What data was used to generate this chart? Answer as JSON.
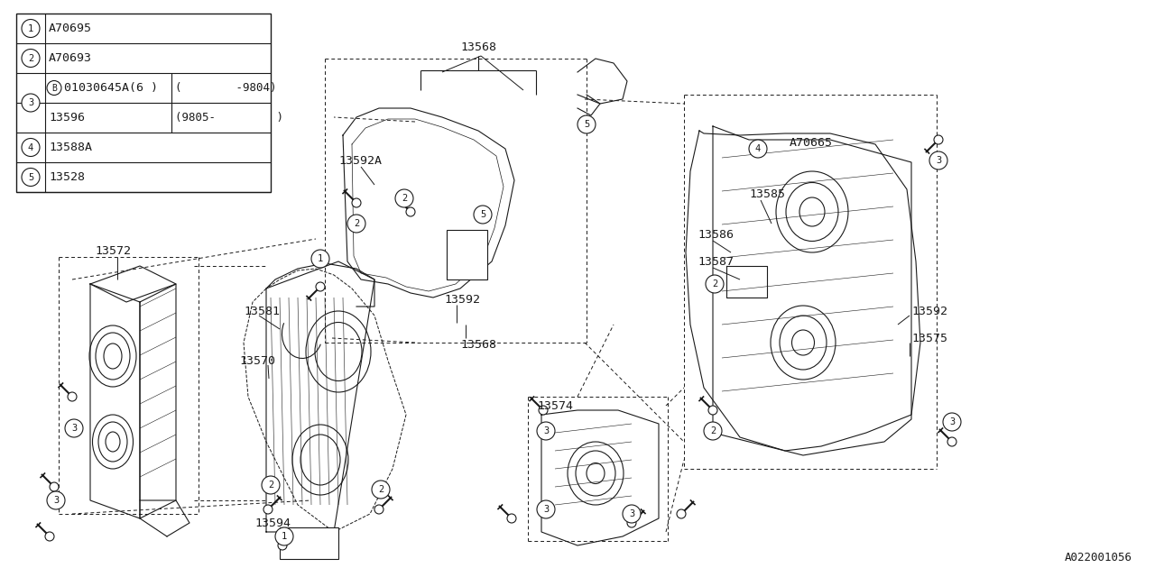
{
  "bg_color": "#ffffff",
  "line_color": "#1a1a1a",
  "title": "A022001056",
  "table_rows": [
    {
      "num": "1",
      "col1": "A70695",
      "col2": ""
    },
    {
      "num": "2",
      "col1": "A70693",
      "col2": ""
    },
    {
      "num": "3",
      "col1": "B 01030645A(6 )",
      "col2": "(          -9804)"
    },
    {
      "num": "3",
      "col1": "13596",
      "col2": "(9805-         )"
    },
    {
      "num": "4",
      "col1": "13588A",
      "col2": ""
    },
    {
      "num": "5",
      "col1": "13528",
      "col2": ""
    }
  ],
  "font_size": 9.5,
  "mono_font": "DejaVu Sans Mono"
}
